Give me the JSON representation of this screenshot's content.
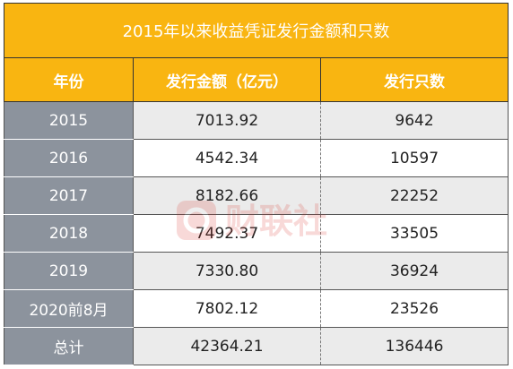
{
  "table": {
    "title": "2015年以来收益凭证发行金额和只数",
    "headers": [
      "年份",
      "发行金额（亿元）",
      "发行只数"
    ],
    "rows": [
      {
        "year": "2015",
        "amount": "7013.92",
        "count": "9642"
      },
      {
        "year": "2016",
        "amount": "4542.34",
        "count": "10597"
      },
      {
        "year": "2017",
        "amount": "8182.66",
        "count": "22252"
      },
      {
        "year": "2018",
        "amount": "7492.37",
        "count": "33505"
      },
      {
        "year": "2019",
        "amount": "7330.80",
        "count": "36924"
      },
      {
        "year": "2020前8月",
        "amount": "7802.12",
        "count": "23526"
      },
      {
        "year": "总计",
        "amount": "42364.21",
        "count": "136446"
      }
    ]
  },
  "watermark": {
    "text": "财联社",
    "color": "#d9342b"
  },
  "colors": {
    "header": "#f9b511",
    "year_column": "#8c939d",
    "stripe": "#ebebeb"
  }
}
